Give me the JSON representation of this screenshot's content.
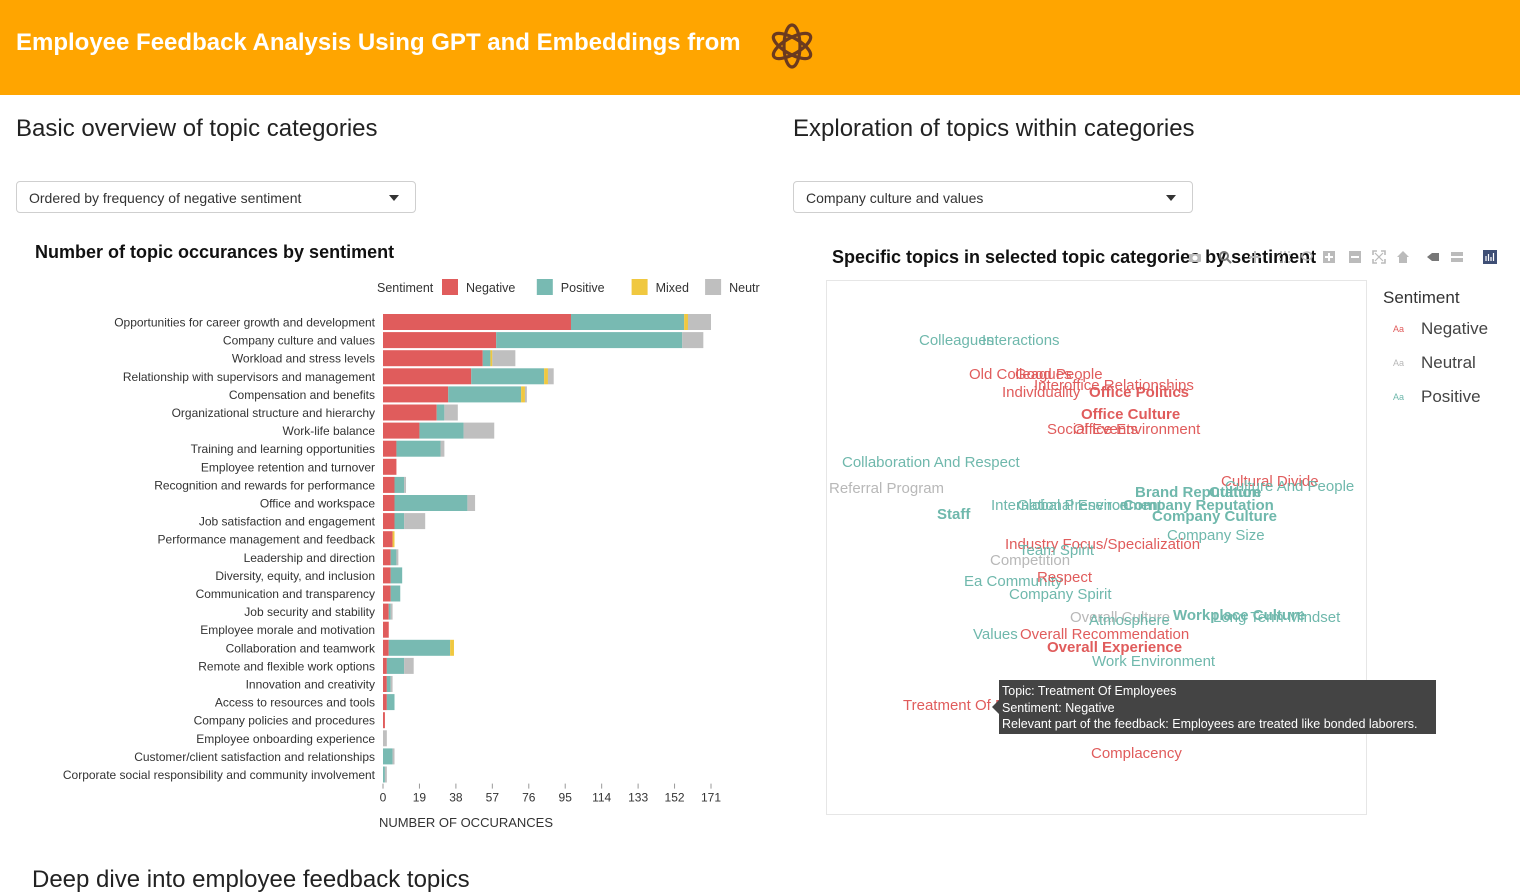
{
  "header": {
    "title": "Employee Feedback Analysis Using GPT and Embeddings from"
  },
  "left": {
    "section_title": "Basic overview of topic categories",
    "dropdown_value": "Ordered by frequency of negative sentiment"
  },
  "right": {
    "section_title": "Exploration of topics within categories",
    "dropdown_value": "Company culture and values",
    "chart_title": "Specific topics in selected topic categories by sentiment",
    "legend_title": "Sentiment",
    "legend_items": [
      {
        "label": "Negative",
        "color": "#e05c5c"
      },
      {
        "label": "Neutral",
        "color": "#b8b8b8"
      },
      {
        "label": "Positive",
        "color": "#6fb8ac"
      }
    ]
  },
  "bottom": {
    "section_title": "Deep dive into employee feedback topics"
  },
  "tooltip": {
    "topic": "Topic: Treatment Of Employees",
    "sentiment": "Sentiment: Negative",
    "feedback": "Relevant part of the feedback: Employees are treated like bonded laborers."
  },
  "colors": {
    "header": "#ffa500",
    "negative": "#e05c5c",
    "positive": "#78bab2",
    "mixed": "#f0c840",
    "neutral": "#bfbfbf"
  },
  "chart_data": {
    "type": "bar",
    "orientation": "horizontal",
    "stacked": true,
    "title": "Number of topic occurances by sentiment",
    "xlabel": "NUMBER OF OCCURANCES",
    "legend_title": "Sentiment",
    "xticks": [
      "0",
      "19",
      "38",
      "57",
      "76",
      "95",
      "114",
      "133",
      "152",
      "171"
    ],
    "xlim": [
      0,
      171
    ],
    "categories": [
      "Opportunities for career growth and development",
      "Company culture and values",
      "Workload and stress levels",
      "Relationship with supervisors and management",
      "Compensation and benefits",
      "Organizational structure and hierarchy",
      "Work-life balance",
      "Training and learning opportunities",
      "Employee retention and turnover",
      "Recognition and rewards for performance",
      "Office and workspace",
      "Job satisfaction and engagement",
      "Performance management and feedback",
      "Leadership and direction",
      "Diversity, equity, and inclusion",
      "Communication and transparency",
      "Job security and stability",
      "Employee morale and motivation",
      "Collaboration and teamwork",
      "Remote and flexible work options",
      "Innovation and creativity",
      "Access to resources and tools",
      "Company policies and procedures",
      "Employee onboarding experience",
      "Customer/client satisfaction and relationships",
      "Corporate social responsibility and community involvement"
    ],
    "series": [
      {
        "name": "Negative",
        "color": "#e05c5c",
        "values": [
          98,
          59,
          52,
          46,
          34,
          28,
          19,
          7,
          7,
          6,
          6,
          6,
          5,
          4,
          4,
          4,
          3,
          3,
          3,
          2,
          2,
          2,
          1,
          0,
          0,
          0
        ]
      },
      {
        "name": "Positive",
        "color": "#78bab2",
        "values": [
          59,
          97,
          4,
          38,
          38,
          4,
          23,
          23,
          0,
          5,
          38,
          5,
          0,
          3,
          6,
          5,
          1,
          0,
          32,
          9,
          2,
          4,
          0,
          0,
          5,
          1
        ]
      },
      {
        "name": "Mixed",
        "color": "#f0c840",
        "values": [
          2,
          0,
          1,
          2,
          2,
          0,
          0,
          0,
          0,
          0,
          0,
          0,
          1,
          0,
          0,
          0,
          0,
          0,
          2,
          0,
          0,
          0,
          0,
          0,
          0,
          0
        ]
      },
      {
        "name": "Neutral",
        "color": "#bfbfbf",
        "values": [
          12,
          11,
          12,
          3,
          1,
          7,
          16,
          2,
          0,
          1,
          4,
          11,
          0,
          1,
          0,
          0,
          1,
          0,
          0,
          5,
          1,
          0,
          0,
          2,
          1,
          1
        ]
      }
    ]
  },
  "wordcloud": {
    "words": [
      {
        "text": "Colleagues",
        "sentiment": "Positive",
        "bold": false
      },
      {
        "text": "Interactions",
        "sentiment": "Positive",
        "bold": false
      },
      {
        "text": "Old Colleagues",
        "sentiment": "Negative",
        "bold": false
      },
      {
        "text": "Good People",
        "sentiment": "Negative",
        "bold": false
      },
      {
        "text": "Interoffice Relationships",
        "sentiment": "Negative",
        "bold": false
      },
      {
        "text": "Individuality",
        "sentiment": "Negative",
        "bold": false
      },
      {
        "text": "Office Politics",
        "sentiment": "Negative",
        "bold": true
      },
      {
        "text": "Office Culture",
        "sentiment": "Negative",
        "bold": true
      },
      {
        "text": "Office Environment",
        "sentiment": "Negative",
        "bold": false
      },
      {
        "text": "Social Events",
        "sentiment": "Negative",
        "bold": false
      },
      {
        "text": "Collaboration And Respect",
        "sentiment": "Positive",
        "bold": false
      },
      {
        "text": "Referral Program",
        "sentiment": "Neutral",
        "bold": false
      },
      {
        "text": "Staff",
        "sentiment": "Positive",
        "bold": true
      },
      {
        "text": "Cultural Divide",
        "sentiment": "Negative",
        "bold": false
      },
      {
        "text": "Culture And People",
        "sentiment": "Positive",
        "bold": false
      },
      {
        "text": "Brand Reputation",
        "sentiment": "Positive",
        "bold": true
      },
      {
        "text": "Culture",
        "sentiment": "Positive",
        "bold": true
      },
      {
        "text": "Global Presence",
        "sentiment": "Positive",
        "bold": false
      },
      {
        "text": "International Environment",
        "sentiment": "Positive",
        "bold": false
      },
      {
        "text": "Company Reputation",
        "sentiment": "Positive",
        "bold": true
      },
      {
        "text": "Company Culture",
        "sentiment": "Positive",
        "bold": true
      },
      {
        "text": "Company Size",
        "sentiment": "Positive",
        "bold": false
      },
      {
        "text": "Industry Focus/Specialization",
        "sentiment": "Negative",
        "bold": false
      },
      {
        "text": "Team Spirit",
        "sentiment": "Positive",
        "bold": false
      },
      {
        "text": "Competition",
        "sentiment": "Neutral",
        "bold": false
      },
      {
        "text": "Ea Community",
        "sentiment": "Positive",
        "bold": false
      },
      {
        "text": "Respect",
        "sentiment": "Negative",
        "bold": false
      },
      {
        "text": "Company Spirit",
        "sentiment": "Positive",
        "bold": false
      },
      {
        "text": "Overall Culture",
        "sentiment": "Neutral",
        "bold": false
      },
      {
        "text": "Atmosphere",
        "sentiment": "Positive",
        "bold": false
      },
      {
        "text": "Long Term Mindset",
        "sentiment": "Positive",
        "bold": false
      },
      {
        "text": "Workplace Culture",
        "sentiment": "Positive",
        "bold": true
      },
      {
        "text": "Values",
        "sentiment": "Positive",
        "bold": false
      },
      {
        "text": "Overall Recommendation",
        "sentiment": "Negative",
        "bold": false
      },
      {
        "text": "Overall Experience",
        "sentiment": "Negative",
        "bold": true
      },
      {
        "text": "Work Environment",
        "sentiment": "Positive",
        "bold": false
      },
      {
        "text": "Treatment Of Employees",
        "sentiment": "Negative",
        "bold": false
      },
      {
        "text": "Complacency",
        "sentiment": "Negative",
        "bold": false
      }
    ]
  }
}
